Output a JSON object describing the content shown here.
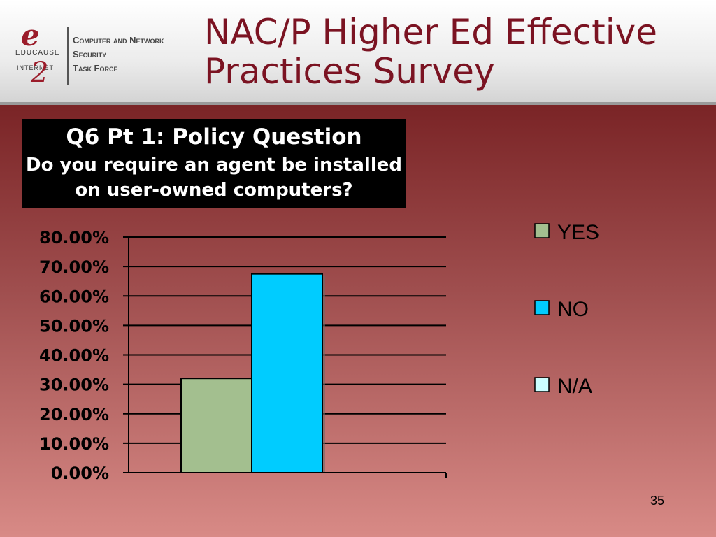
{
  "slide": {
    "title": "NAC/P Higher Ed Effective Practices Survey",
    "slide_number": "35"
  },
  "logo": {
    "mark": "e",
    "educause": "EDUCAUSE",
    "internet2_prefix": "INTERNET",
    "internet2_mark": "2",
    "line1": "Computer and Network",
    "line2": "Security",
    "line3": "Task Force"
  },
  "question": {
    "heading": "Q6 Pt 1: Policy Question",
    "text": "Do you require an agent be installed on user-owned computers?"
  },
  "chart_data": {
    "type": "bar",
    "categories": [
      ""
    ],
    "series": [
      {
        "name": "YES",
        "values": [
          32.0
        ],
        "color": "#a3bf8f"
      },
      {
        "name": "NO",
        "values": [
          67.5
        ],
        "color": "#00ccff"
      },
      {
        "name": "N/A",
        "values": [
          0.0
        ],
        "color": "#ccffff"
      }
    ],
    "ylim": [
      0,
      80
    ],
    "yticks": [
      "0.00%",
      "10.00%",
      "20.00%",
      "30.00%",
      "40.00%",
      "50.00%",
      "60.00%",
      "70.00%",
      "80.00%"
    ],
    "grid": true,
    "legend": "right"
  }
}
